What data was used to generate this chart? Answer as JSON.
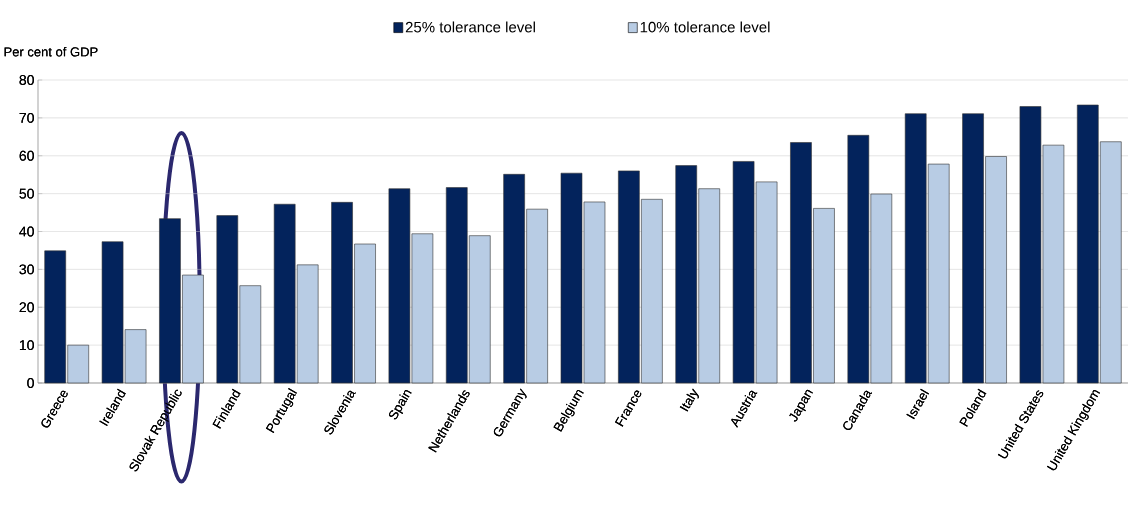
{
  "chart_data": {
    "type": "bar",
    "ylabel": "Per cent of GDP",
    "categories": [
      "Greece",
      "Ireland",
      "Slovak Republic",
      "Finland",
      "Portugal",
      "Slovenia",
      "Spain",
      "Netherlands",
      "Germany",
      "Belgium",
      "France",
      "Italy",
      "Austria",
      "Japan",
      "Canada",
      "Israel",
      "Poland",
      "United States",
      "United Kingdom"
    ],
    "series": [
      {
        "name": "25% tolerance level",
        "color": "#03235c",
        "values": [
          34.9,
          37.3,
          43.4,
          44.2,
          47.2,
          47.7,
          51.3,
          51.6,
          55.1,
          55.4,
          56.0,
          57.4,
          58.5,
          63.5,
          65.4,
          71.1,
          71.1,
          73.0,
          73.4
        ]
      },
      {
        "name": "10% tolerance level",
        "color": "#b8cce4",
        "values": [
          10.0,
          14.1,
          28.5,
          25.7,
          31.2,
          36.7,
          39.4,
          38.9,
          45.9,
          47.8,
          48.5,
          51.3,
          53.1,
          46.1,
          49.9,
          57.8,
          59.8,
          62.8,
          63.7
        ]
      }
    ],
    "ylim": [
      0,
      80
    ],
    "yticks": [
      0,
      10,
      20,
      30,
      40,
      50,
      60,
      70,
      80
    ],
    "grid": "y",
    "legend": "top"
  }
}
